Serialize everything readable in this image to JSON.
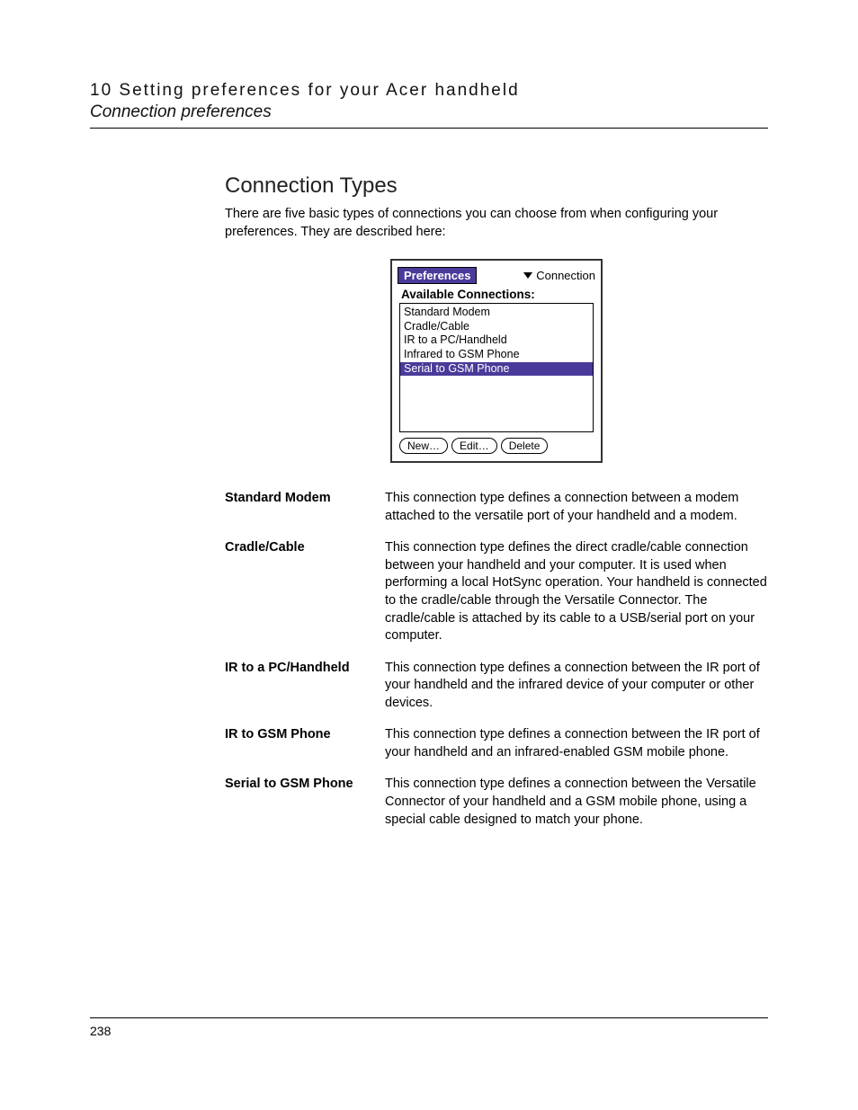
{
  "header": {
    "chapter": "10 Setting preferences for your Acer handheld",
    "subchapter": "Connection preferences"
  },
  "section": {
    "title": "Connection Types",
    "intro": "There are five basic types of connections you can choose from when configuring your preferences. They are described here:"
  },
  "palm": {
    "title": "Preferences",
    "dropdown": "Connection",
    "subheader": "Available Connections:",
    "items": {
      "i0": "Standard Modem",
      "i1": "Cradle/Cable",
      "i2": "IR to a PC/Handheld",
      "i3": "Infrared to GSM Phone",
      "i4": "Serial to GSM Phone"
    },
    "selected_index": 4,
    "buttons": {
      "new": "New…",
      "edit": "Edit…",
      "delete": "Delete"
    }
  },
  "definitions": {
    "d0": {
      "term": "Standard Modem",
      "desc": "This connection type defines a connection between a modem attached to the versatile port of your handheld and a modem."
    },
    "d1": {
      "term": "Cradle/Cable",
      "desc": "This connection type defines the direct cradle/cable connection between your handheld and your computer. It is used when performing a local HotSync operation. Your handheld is connected to the cradle/cable through the Versatile Connector. The cradle/cable is attached by its cable to a USB/serial port on your computer."
    },
    "d2": {
      "term": "IR to a PC/Handheld",
      "desc": "This connection type defines a connection between the IR port of your handheld and the infrared device of your computer or other devices."
    },
    "d3": {
      "term": "IR to GSM Phone",
      "desc": "This connection type defines a connection between the IR port of your handheld and an infrared-enabled GSM mobile phone."
    },
    "d4": {
      "term": "Serial to GSM Phone",
      "desc": "This connection type defines a connection between the Versatile Connector of your handheld and a GSM mobile phone, using a special cable designed to match your phone."
    }
  },
  "page_number": "238",
  "colors": {
    "accent": "#4a3a9a",
    "text": "#000000",
    "background": "#ffffff"
  }
}
